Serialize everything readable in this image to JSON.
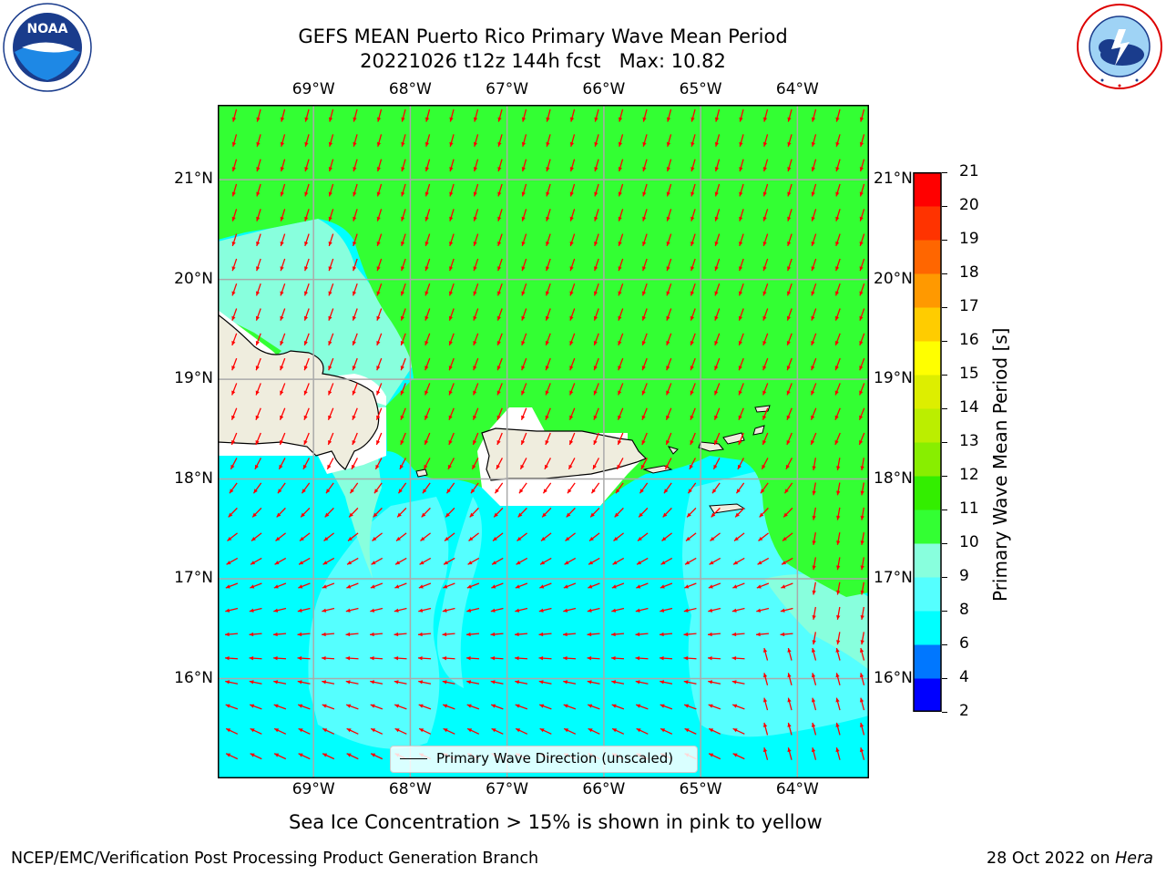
{
  "header": {
    "title_line1": "GEFS MEAN Puerto Rico Primary Wave Mean Period",
    "title_line2": "20221026 t12z 144h fcst   Max: 10.82"
  },
  "logos": {
    "left": {
      "name": "noaa-logo-icon",
      "text": "NOAA",
      "ring_text": "NATIONAL OCEANIC AND ATMOSPHERIC ADMINISTRATION · U.S. DEPARTMENT OF COMMERCE"
    },
    "right": {
      "name": "nws-logo-icon",
      "ring_text": "NATIONAL WEATHER SERVICE"
    }
  },
  "map": {
    "lon_labels": [
      "69°W",
      "68°W",
      "67°W",
      "66°W",
      "65°W",
      "64°W"
    ],
    "lon_values": [
      -69,
      -68,
      -67,
      -66,
      -65,
      -64
    ],
    "lat_labels": [
      "21°N",
      "20°N",
      "19°N",
      "18°N",
      "17°N",
      "16°N"
    ],
    "lat_values": [
      21,
      20,
      19,
      18,
      17,
      16
    ],
    "extent": {
      "lon_min": -69.99,
      "lon_max": -63.26,
      "lat_min": 15.0,
      "lat_max": 21.75
    },
    "colors": {
      "green_10_11": "#33ff33",
      "aqua_9_10": "#88ffdd",
      "cyan_8_9": "#55ffff",
      "cyan_6_8": "#00ffff",
      "land": "#efedde",
      "arrow": "#ff0000",
      "grid": "#aaaaaa"
    },
    "legend_label": "Primary Wave Direction (unscaled)"
  },
  "colorbar": {
    "title": "Primary Wave Mean Period [s]",
    "levels": [
      2,
      4,
      6,
      8,
      9,
      10,
      11,
      12,
      13,
      14,
      15,
      16,
      17,
      18,
      19,
      20,
      21
    ],
    "colors": [
      "#0000ff",
      "#0077ff",
      "#00ffff",
      "#55ffff",
      "#88ffdd",
      "#33ff33",
      "#33ee00",
      "#88ee00",
      "#bbee00",
      "#ddee00",
      "#ffff00",
      "#ffcc00",
      "#ff9900",
      "#ff6600",
      "#ff3300",
      "#ff0000"
    ]
  },
  "note": "Sea Ice Concentration > 15% is shown in pink to yellow",
  "footer": {
    "left": "NCEP/EMC/Verification Post Processing Product Generation Branch",
    "right_prefix": "28 Oct 2022 on ",
    "right_host": "Hera"
  }
}
